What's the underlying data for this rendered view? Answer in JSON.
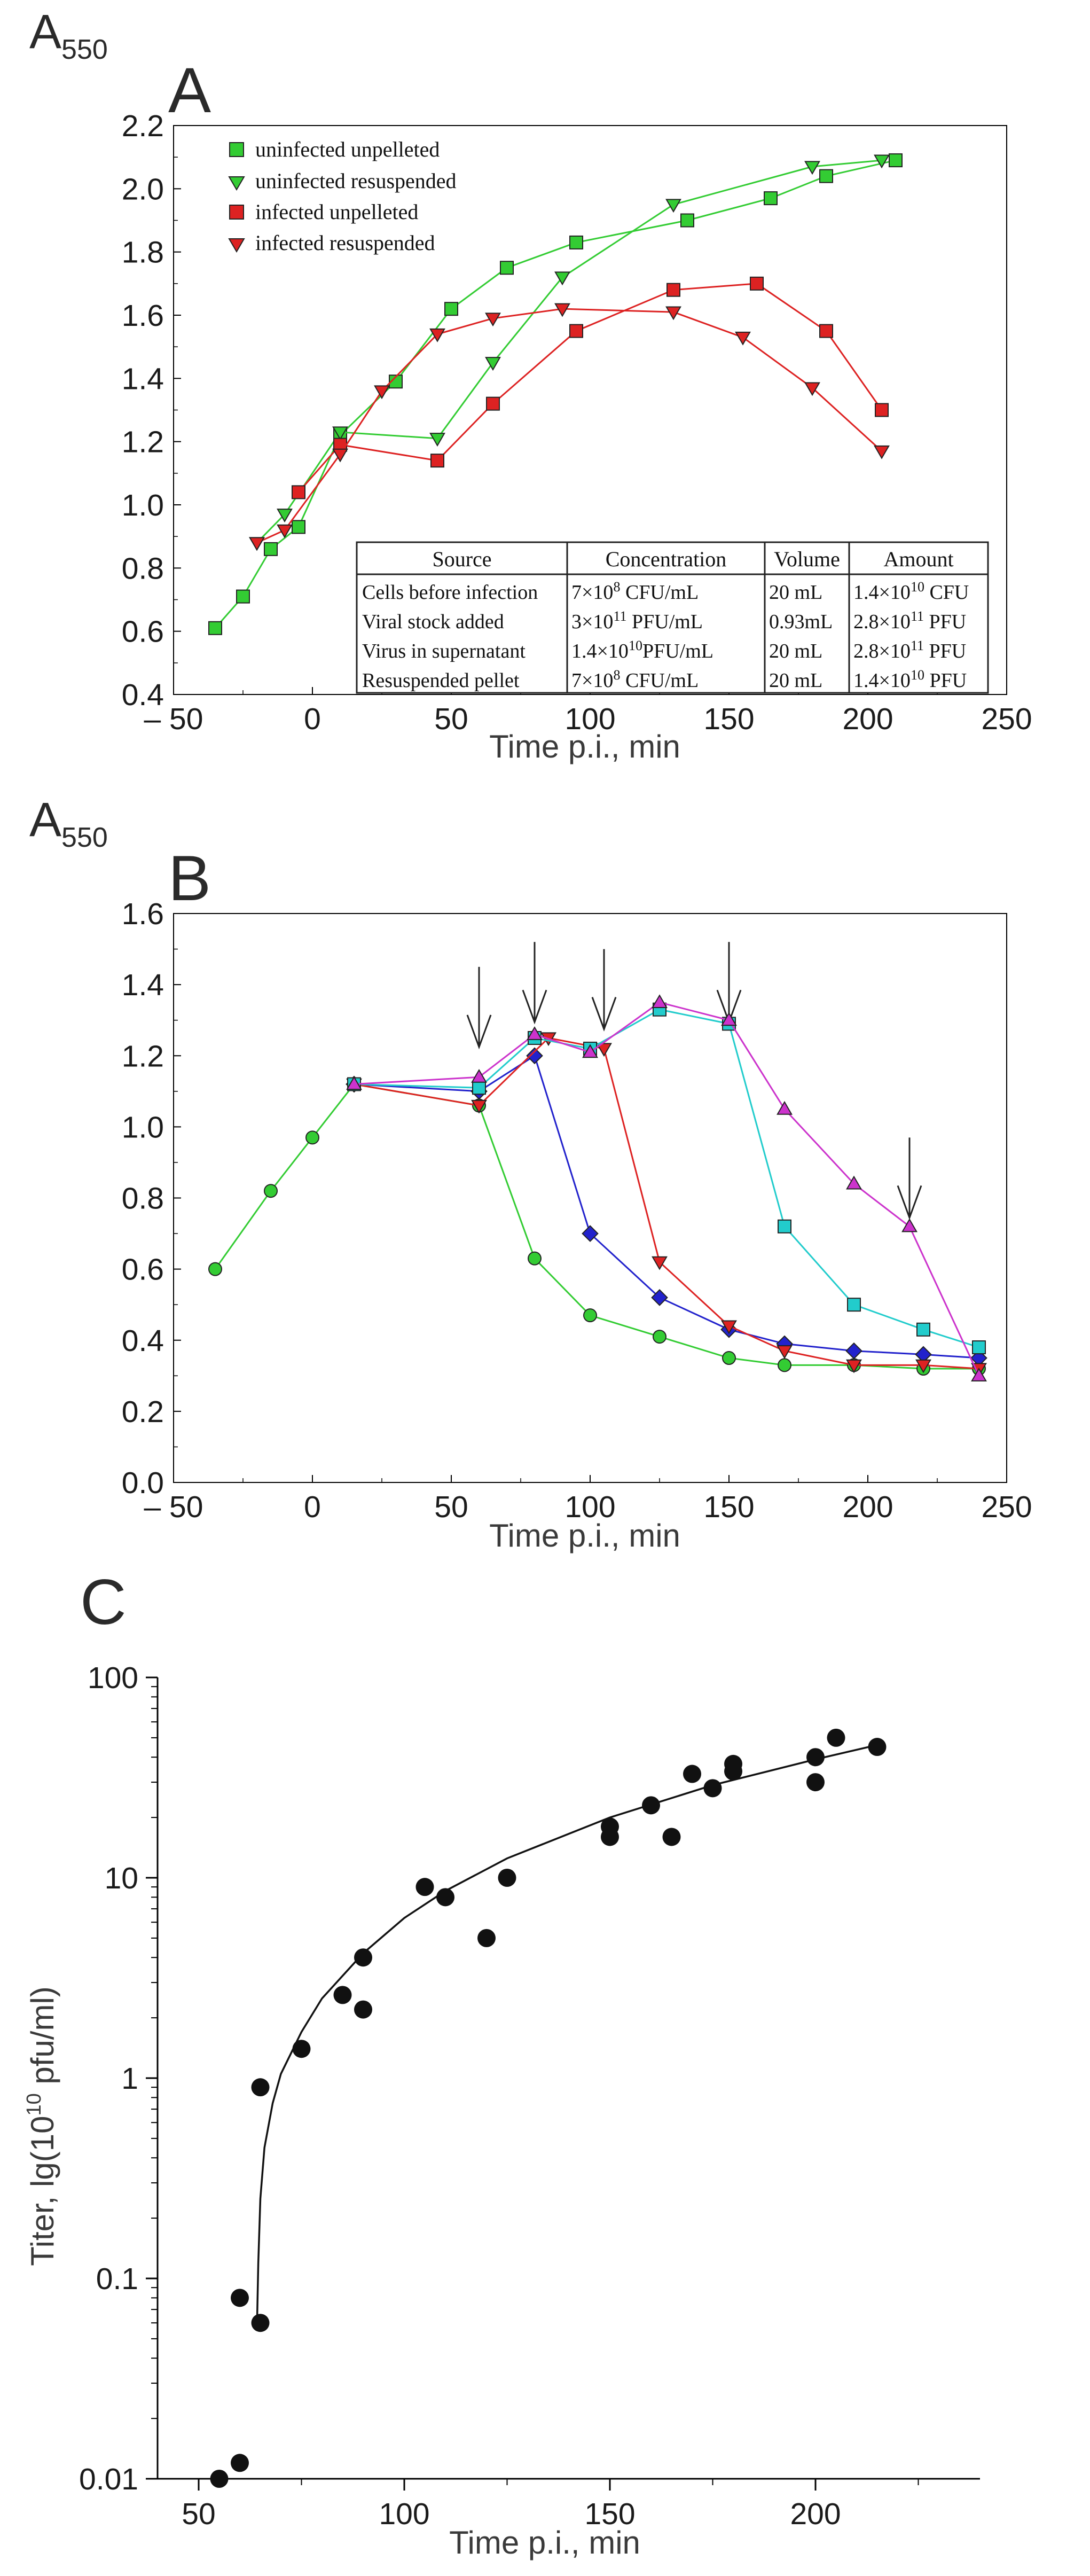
{
  "chart_data": [
    {
      "panel": "A",
      "type": "line",
      "panel_label": "A",
      "y_title_main": "A",
      "y_title_sub": "550",
      "xlabel": "Time p.i., min",
      "xlim": [
        -50,
        250
      ],
      "ylim": [
        0.4,
        2.2
      ],
      "xticks": [
        -50,
        0,
        50,
        100,
        150,
        200,
        250
      ],
      "xtick_labels": [
        "– 50",
        "0",
        "50",
        "100",
        "150",
        "200",
        "250"
      ],
      "yticks": [
        0.4,
        0.6,
        0.8,
        1.0,
        1.2,
        1.4,
        1.6,
        1.8,
        2.0,
        2.2
      ],
      "ytick_labels": [
        "0.4",
        "0.6",
        "0.8",
        "1.0",
        "1.2",
        "1.4",
        "1.6",
        "1.8",
        "2.0",
        "2.2"
      ],
      "legend_position": "top-left",
      "series": [
        {
          "name": "uninfected unpelleted",
          "color": "#33cc33",
          "marker": "square",
          "x": [
            -35,
            -25,
            -15,
            -5,
            10,
            30,
            50,
            70,
            95,
            135,
            165,
            185,
            210
          ],
          "y": [
            0.61,
            0.71,
            0.86,
            0.93,
            1.22,
            1.39,
            1.62,
            1.75,
            1.83,
            1.9,
            1.97,
            2.04,
            2.09
          ]
        },
        {
          "name": "uninfected resuspended",
          "color": "#33cc33",
          "marker": "triangle-down",
          "x": [
            -20,
            -10,
            10,
            45,
            65,
            90,
            130,
            180,
            205
          ],
          "y": [
            0.88,
            0.97,
            1.23,
            1.21,
            1.45,
            1.72,
            1.95,
            2.07,
            2.09
          ]
        },
        {
          "name": "infected unpelleted",
          "color": "#dd2222",
          "marker": "square",
          "x": [
            -5,
            10,
            45,
            65,
            95,
            130,
            160,
            185,
            205
          ],
          "y": [
            1.04,
            1.19,
            1.14,
            1.32,
            1.55,
            1.68,
            1.7,
            1.55,
            1.3
          ]
        },
        {
          "name": "infected resuspended",
          "color": "#dd2222",
          "marker": "triangle-down",
          "x": [
            -20,
            -10,
            10,
            25,
            45,
            65,
            90,
            130,
            155,
            180,
            205
          ],
          "y": [
            0.88,
            0.92,
            1.16,
            1.36,
            1.54,
            1.59,
            1.62,
            1.61,
            1.53,
            1.37,
            1.17
          ]
        }
      ],
      "table": {
        "headers": [
          "Source",
          "Concentration",
          "Volume",
          "Amount"
        ],
        "rows": [
          [
            "Cells before infection",
            "7×10",
            "8",
            " CFU/mL",
            "20 mL",
            "1.4×10",
            "10",
            " CFU"
          ],
          [
            "Viral stock added",
            "3×10",
            "11",
            " PFU/mL",
            "0.93mL",
            "2.8×10",
            "11",
            " PFU"
          ],
          [
            "Virus in supernatant",
            "1.4×10",
            "10",
            "PFU/mL",
            "20 mL",
            "2.8×10",
            "11",
            " PFU"
          ],
          [
            "Resuspended pellet",
            "7×10",
            "8",
            " CFU/mL",
            "20 mL",
            "1.4×10",
            "10",
            " PFU"
          ]
        ]
      }
    },
    {
      "panel": "B",
      "type": "line",
      "panel_label": "B",
      "y_title_main": "A",
      "y_title_sub": "550",
      "xlabel": "Time p.i., min",
      "xlim": [
        -50,
        250
      ],
      "ylim": [
        0.0,
        1.6
      ],
      "xticks": [
        -50,
        0,
        50,
        100,
        150,
        200,
        250
      ],
      "xtick_labels": [
        "– 50",
        "0",
        "50",
        "100",
        "150",
        "200",
        "250"
      ],
      "yticks": [
        0.0,
        0.2,
        0.4,
        0.6,
        0.8,
        1.0,
        1.2,
        1.4,
        1.6
      ],
      "ytick_labels": [
        "0.0",
        "0.2",
        "0.4",
        "0.6",
        "0.8",
        "1.0",
        "1.2",
        "1.4",
        "1.6"
      ],
      "arrows_at_x": [
        60,
        80,
        105,
        150,
        215
      ],
      "series": [
        {
          "name": "green",
          "color": "#33cc33",
          "marker": "circle",
          "x": [
            -35,
            -15,
            0,
            15,
            60,
            80,
            100,
            125,
            150,
            170,
            195,
            220,
            240
          ],
          "y": [
            0.6,
            0.82,
            0.97,
            1.12,
            1.06,
            0.63,
            0.47,
            0.41,
            0.35,
            0.33,
            0.33,
            0.32,
            0.32
          ]
        },
        {
          "name": "blue",
          "color": "#2222cc",
          "marker": "diamond",
          "x": [
            15,
            60,
            80,
            100,
            125,
            150,
            170,
            195,
            220,
            240
          ],
          "y": [
            1.12,
            1.1,
            1.2,
            0.7,
            0.52,
            0.43,
            0.39,
            0.37,
            0.36,
            0.35
          ]
        },
        {
          "name": "red",
          "color": "#dd2222",
          "marker": "triangle-down",
          "x": [
            15,
            60,
            85,
            105,
            125,
            150,
            170,
            195,
            220,
            240
          ],
          "y": [
            1.12,
            1.06,
            1.25,
            1.22,
            0.62,
            0.44,
            0.37,
            0.33,
            0.33,
            0.32
          ]
        },
        {
          "name": "cyan",
          "color": "#22cccc",
          "marker": "square",
          "x": [
            15,
            60,
            80,
            100,
            125,
            150,
            170,
            195,
            220,
            240
          ],
          "y": [
            1.12,
            1.11,
            1.25,
            1.22,
            1.33,
            1.29,
            0.72,
            0.5,
            0.43,
            0.38
          ]
        },
        {
          "name": "magenta",
          "color": "#cc33cc",
          "marker": "triangle-up",
          "x": [
            15,
            60,
            80,
            100,
            125,
            150,
            170,
            195,
            215,
            240
          ],
          "y": [
            1.12,
            1.14,
            1.26,
            1.21,
            1.35,
            1.3,
            1.05,
            0.84,
            0.72,
            0.3
          ]
        }
      ]
    },
    {
      "panel": "C",
      "type": "scatter",
      "panel_label": "C",
      "xlabel": "Time p.i., min",
      "ylabel": "Titer, lg(10",
      "ylabel_sup": "10",
      "ylabel_tail": " pfu/ml)",
      "yscale": "log",
      "xlim": [
        40,
        240
      ],
      "ylim": [
        0.01,
        100
      ],
      "xticks": [
        50,
        100,
        150,
        200
      ],
      "xtick_labels": [
        "50",
        "100",
        "150",
        "200"
      ],
      "yticks": [
        0.01,
        0.1,
        1,
        10,
        100
      ],
      "ytick_labels": [
        "0.01",
        "0.1",
        "1",
        "10",
        "100"
      ],
      "points": {
        "x": [
          55,
          60,
          60,
          65,
          65,
          75,
          85,
          90,
          90,
          105,
          110,
          120,
          125,
          150,
          150,
          160,
          165,
          170,
          175,
          180,
          180,
          200,
          200,
          205,
          215
        ],
        "y": [
          0.01,
          0.012,
          0.08,
          0.06,
          0.9,
          1.4,
          2.6,
          2.2,
          4.0,
          9.0,
          8.0,
          5.0,
          10.0,
          16.0,
          18.0,
          23.0,
          16.0,
          33.0,
          28.0,
          34.0,
          37.0,
          30.0,
          40.0,
          50.0,
          45.0
        ]
      },
      "fit_curve": {
        "x": [
          64.2,
          64.5,
          65,
          66,
          68,
          70,
          75,
          80,
          90,
          100,
          110,
          125,
          150,
          175,
          200,
          215
        ],
        "y": [
          0.06,
          0.12,
          0.25,
          0.45,
          0.75,
          1.05,
          1.7,
          2.5,
          4.2,
          6.3,
          8.6,
          12.5,
          20.0,
          29.0,
          39.0,
          46.0
        ]
      }
    }
  ],
  "colors": {
    "axis": "#000000",
    "marker_edge": "#222222",
    "label_gray": "#3a3a3a"
  }
}
